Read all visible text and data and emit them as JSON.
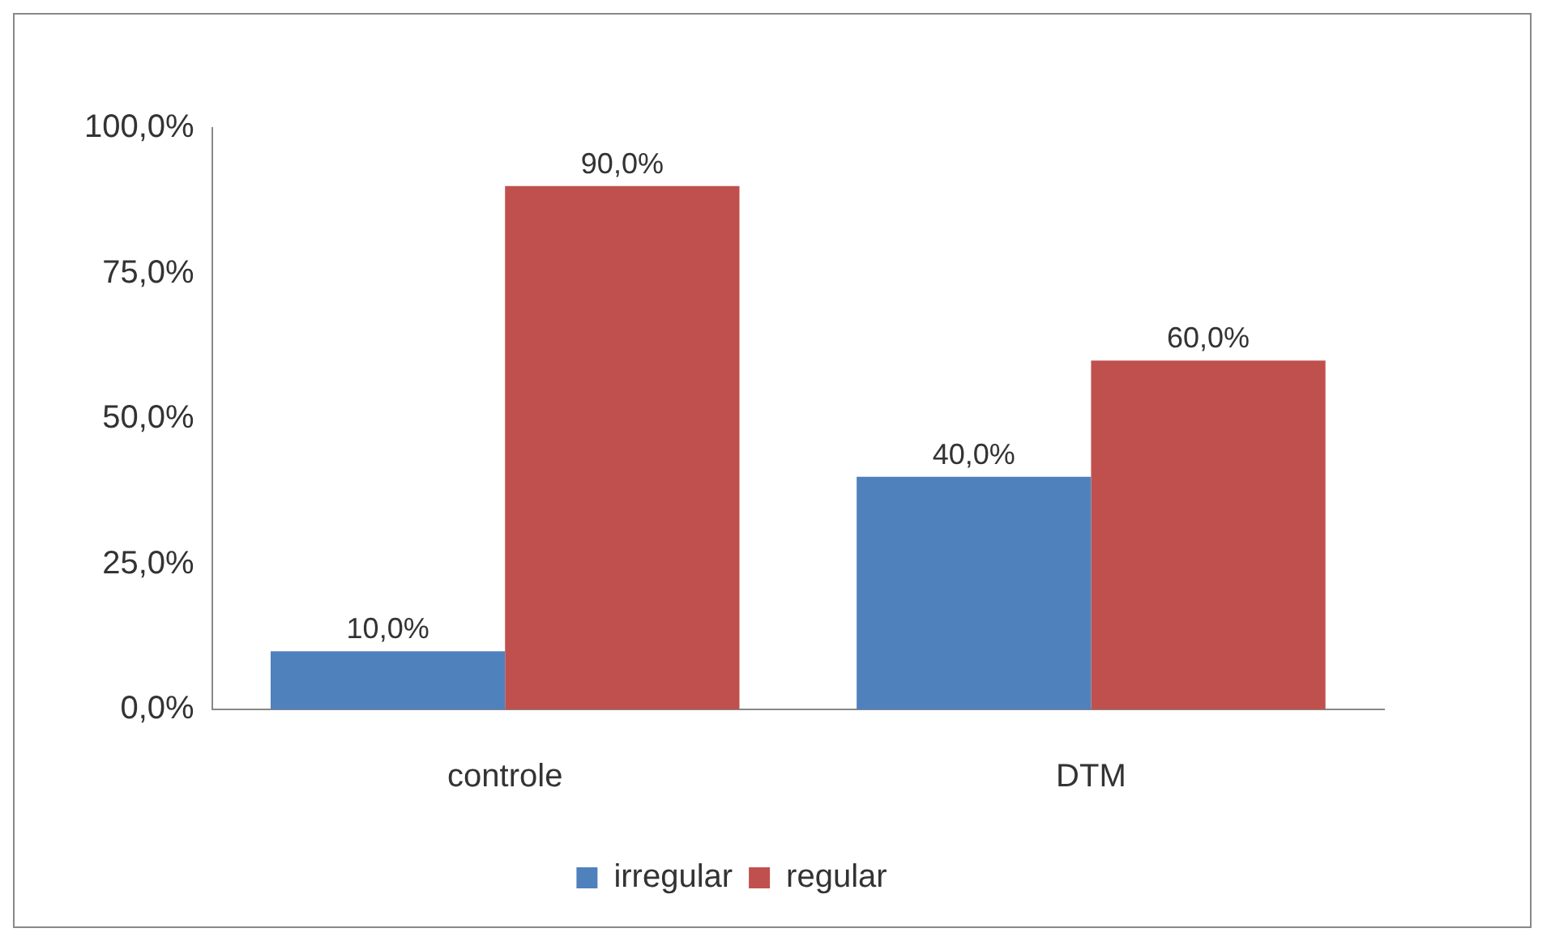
{
  "chart_data": {
    "type": "bar",
    "categories": [
      "controle",
      "DTM"
    ],
    "series": [
      {
        "name": "irregular",
        "color": "#4f81bd",
        "values": [
          10,
          40
        ],
        "value_labels": [
          "10,0%",
          "40,0%"
        ]
      },
      {
        "name": "regular",
        "color": "#c0504d",
        "values": [
          90,
          60
        ],
        "value_labels": [
          "90,0%",
          "60,0%"
        ]
      }
    ],
    "ylim": [
      0,
      100
    ],
    "yticks": [
      {
        "value": 0,
        "label": "0,0%"
      },
      {
        "value": 25,
        "label": "25,0%"
      },
      {
        "value": 50,
        "label": "50,0%"
      },
      {
        "value": 75,
        "label": "75,0%"
      },
      {
        "value": 100,
        "label": "100,0%"
      }
    ],
    "grid": false,
    "legend": "bottom"
  }
}
